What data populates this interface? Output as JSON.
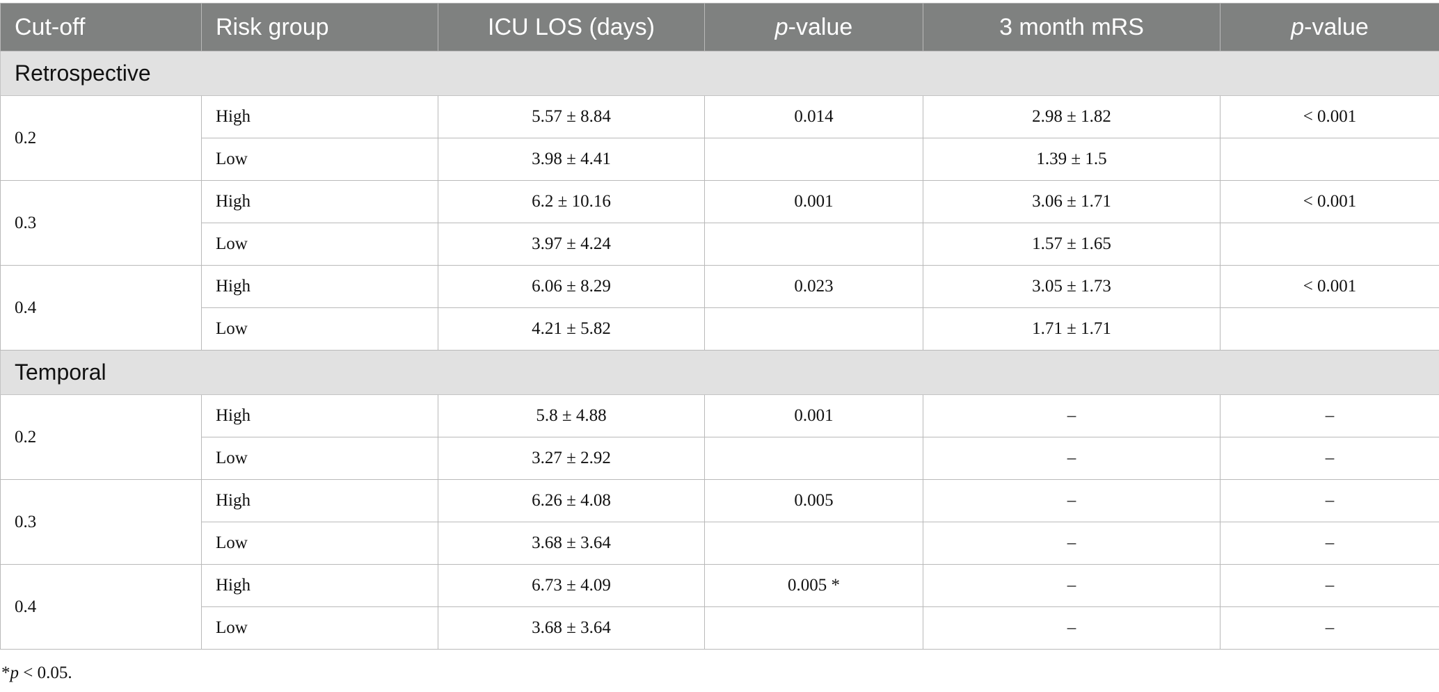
{
  "table": {
    "headers": {
      "cutoff": "Cut-off",
      "risk_group": "Risk group",
      "icu_los": "ICU LOS (days)",
      "p_value_1_italic": "p",
      "p_value_1_rest": "-value",
      "mrs": "3 month mRS",
      "p_value_2_italic": "p",
      "p_value_2_rest": "-value"
    },
    "sections": [
      {
        "title": "Retrospective",
        "groups": [
          {
            "cutoff": "0.2",
            "p_los": "0.014",
            "p_mrs": "< 0.001",
            "rows": [
              {
                "risk": "High",
                "los": "5.57 ± 8.84",
                "mrs": "2.98 ± 1.82"
              },
              {
                "risk": "Low",
                "los": "3.98 ± 4.41",
                "mrs": "1.39 ± 1.5"
              }
            ]
          },
          {
            "cutoff": "0.3",
            "p_los": "0.001",
            "p_mrs": "< 0.001",
            "rows": [
              {
                "risk": "High",
                "los": "6.2 ± 10.16",
                "mrs": "3.06 ± 1.71"
              },
              {
                "risk": "Low",
                "los": "3.97 ± 4.24",
                "mrs": "1.57 ± 1.65"
              }
            ]
          },
          {
            "cutoff": "0.4",
            "p_los": "0.023",
            "p_mrs": "< 0.001",
            "rows": [
              {
                "risk": "High",
                "los": "6.06 ± 8.29",
                "mrs": "3.05 ± 1.73"
              },
              {
                "risk": "Low",
                "los": "4.21 ± 5.82",
                "mrs": "1.71 ± 1.71"
              }
            ]
          }
        ]
      },
      {
        "title": "Temporal",
        "groups": [
          {
            "cutoff": "0.2",
            "p_los": "0.001",
            "p_mrs": "–",
            "rows": [
              {
                "risk": "High",
                "los": "5.8 ± 4.88",
                "mrs": "–",
                "p_mrs_low": "–"
              },
              {
                "risk": "Low",
                "los": "3.27 ± 2.92",
                "mrs": "–",
                "p_mrs_low": "–"
              }
            ]
          },
          {
            "cutoff": "0.3",
            "p_los": "0.005",
            "p_mrs": "–",
            "rows": [
              {
                "risk": "High",
                "los": "6.26 ± 4.08",
                "mrs": "–",
                "p_mrs_low": "–"
              },
              {
                "risk": "Low",
                "los": "3.68 ± 3.64",
                "mrs": "–",
                "p_mrs_low": "–"
              }
            ]
          },
          {
            "cutoff": "0.4",
            "p_los": "0.005 *",
            "p_mrs": "–",
            "rows": [
              {
                "risk": "High",
                "los": "6.73 ± 4.09",
                "mrs": "–",
                "p_mrs_low": "–"
              },
              {
                "risk": "Low",
                "los": "3.68 ± 3.64",
                "mrs": "–",
                "p_mrs_low": "–"
              }
            ]
          }
        ]
      }
    ]
  },
  "footnote": {
    "star": "*",
    "italic": "p",
    "rest": " < 0.05."
  }
}
